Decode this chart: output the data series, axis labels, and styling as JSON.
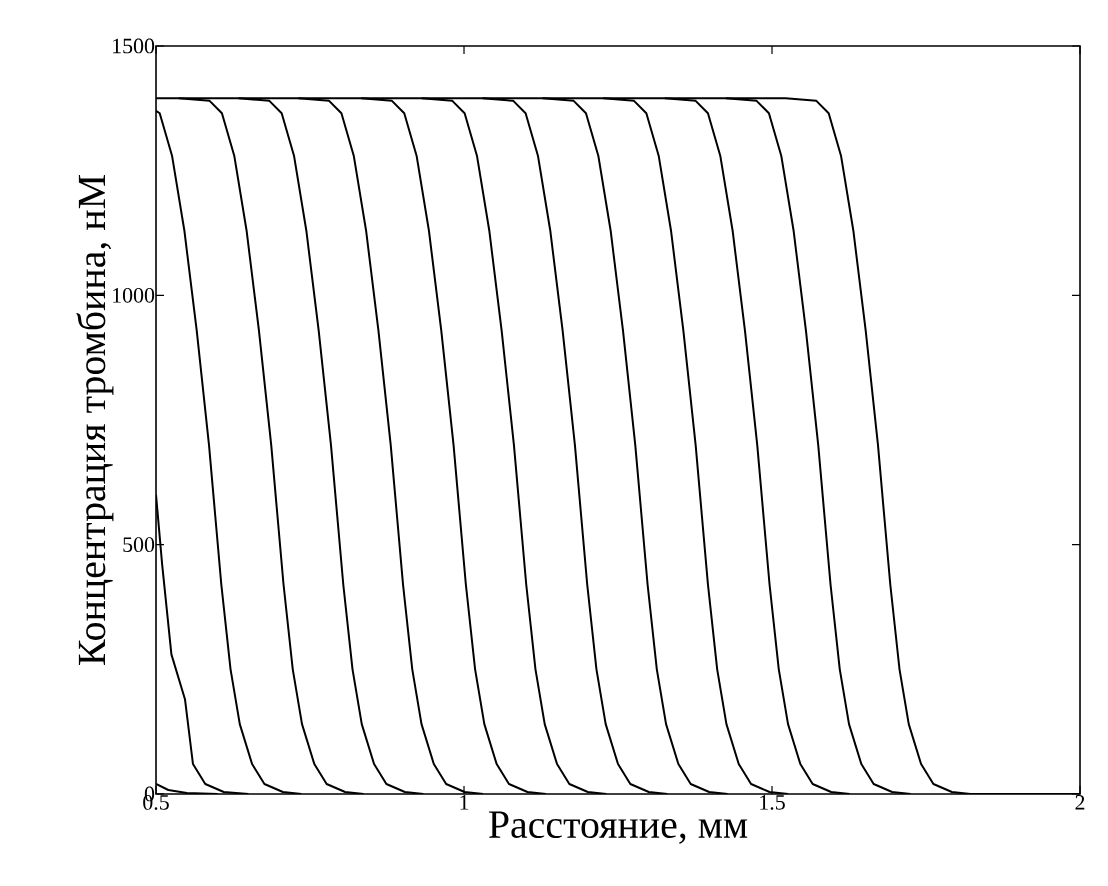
{
  "chart_data": {
    "type": "line",
    "xlabel": "Расстояние, мм",
    "ylabel": "Концентрация тромбина, нМ",
    "xlim": [
      0.5,
      2
    ],
    "ylim": [
      0,
      1500
    ],
    "xticks": [
      0.5,
      1,
      1.5,
      2
    ],
    "yticks": [
      0,
      500,
      1000,
      1500
    ],
    "series": [
      {
        "color": "#000000",
        "x": [
          0.5,
          0.52,
          0.55,
          0.6
        ],
        "values": [
          20,
          8,
          2,
          0
        ]
      },
      {
        "color": "#000000",
        "x": [
          0.5,
          0.51,
          0.525,
          0.547,
          0.56,
          0.58,
          0.61,
          0.65
        ],
        "values": [
          600,
          460,
          280,
          190,
          60,
          20,
          4,
          0
        ]
      },
      {
        "color": "#000000",
        "x": [
          0.5,
          0.506,
          0.526,
          0.546,
          0.566,
          0.586,
          0.596,
          0.606,
          0.621,
          0.636,
          0.656,
          0.676,
          0.706,
          0.736
        ],
        "values": [
          1370,
          1365,
          1280,
          1130,
          930,
          700,
          560,
          420,
          250,
          140,
          60,
          20,
          4,
          0
        ]
      },
      {
        "color": "#000000",
        "x": [
          0.537,
          0.587,
          0.607,
          0.627,
          0.647,
          0.667,
          0.687,
          0.697,
          0.707,
          0.722,
          0.737,
          0.757,
          0.777,
          0.807,
          0.837
        ],
        "values": [
          1395,
          1390,
          1365,
          1280,
          1130,
          930,
          700,
          560,
          420,
          250,
          140,
          60,
          20,
          4,
          0
        ]
      },
      {
        "color": "#000000",
        "x": [
          0.634,
          0.684,
          0.704,
          0.724,
          0.744,
          0.764,
          0.784,
          0.794,
          0.804,
          0.819,
          0.834,
          0.854,
          0.874,
          0.904,
          0.934
        ],
        "values": [
          1395,
          1390,
          1365,
          1280,
          1130,
          930,
          700,
          560,
          420,
          250,
          140,
          60,
          20,
          4,
          0
        ]
      },
      {
        "color": "#000000",
        "x": [
          0.731,
          0.781,
          0.801,
          0.821,
          0.841,
          0.861,
          0.881,
          0.891,
          0.901,
          0.916,
          0.931,
          0.951,
          0.971,
          1.001,
          1.031
        ],
        "values": [
          1395,
          1390,
          1365,
          1280,
          1130,
          930,
          700,
          560,
          420,
          250,
          140,
          60,
          20,
          4,
          0
        ]
      },
      {
        "color": "#000000",
        "x": [
          0.833,
          0.883,
          0.903,
          0.923,
          0.943,
          0.963,
          0.983,
          0.993,
          1.003,
          1.018,
          1.033,
          1.053,
          1.073,
          1.103,
          1.133
        ],
        "values": [
          1395,
          1390,
          1365,
          1280,
          1130,
          930,
          700,
          560,
          420,
          250,
          140,
          60,
          20,
          4,
          0
        ]
      },
      {
        "color": "#000000",
        "x": [
          0.931,
          0.981,
          1.001,
          1.021,
          1.041,
          1.061,
          1.081,
          1.091,
          1.101,
          1.116,
          1.131,
          1.151,
          1.171,
          1.201,
          1.231
        ],
        "values": [
          1395,
          1390,
          1365,
          1280,
          1130,
          930,
          700,
          560,
          420,
          250,
          140,
          60,
          20,
          4,
          0
        ]
      },
      {
        "color": "#000000",
        "x": [
          1.03,
          1.08,
          1.1,
          1.12,
          1.14,
          1.16,
          1.18,
          1.19,
          1.2,
          1.215,
          1.23,
          1.25,
          1.27,
          1.3,
          1.33
        ],
        "values": [
          1395,
          1390,
          1365,
          1280,
          1130,
          930,
          700,
          560,
          420,
          250,
          140,
          60,
          20,
          4,
          0
        ]
      },
      {
        "color": "#000000",
        "x": [
          1.128,
          1.178,
          1.198,
          1.218,
          1.238,
          1.258,
          1.278,
          1.288,
          1.298,
          1.313,
          1.328,
          1.348,
          1.368,
          1.398,
          1.428
        ],
        "values": [
          1395,
          1390,
          1365,
          1280,
          1130,
          930,
          700,
          560,
          420,
          250,
          140,
          60,
          20,
          4,
          0
        ]
      },
      {
        "color": "#000000",
        "x": [
          1.226,
          1.276,
          1.296,
          1.316,
          1.336,
          1.356,
          1.376,
          1.386,
          1.396,
          1.411,
          1.426,
          1.446,
          1.466,
          1.496,
          1.526
        ],
        "values": [
          1395,
          1390,
          1365,
          1280,
          1130,
          930,
          700,
          560,
          420,
          250,
          140,
          60,
          20,
          4,
          0
        ]
      },
      {
        "color": "#000000",
        "x": [
          1.326,
          1.376,
          1.396,
          1.416,
          1.436,
          1.456,
          1.476,
          1.486,
          1.496,
          1.511,
          1.526,
          1.546,
          1.566,
          1.596,
          1.626
        ],
        "values": [
          1395,
          1390,
          1365,
          1280,
          1130,
          930,
          700,
          560,
          420,
          250,
          140,
          60,
          20,
          4,
          0
        ]
      },
      {
        "color": "#000000",
        "x": [
          1.425,
          1.475,
          1.495,
          1.515,
          1.535,
          1.555,
          1.575,
          1.585,
          1.595,
          1.61,
          1.625,
          1.645,
          1.665,
          1.695,
          1.725
        ],
        "values": [
          1395,
          1390,
          1365,
          1280,
          1130,
          930,
          700,
          560,
          420,
          250,
          140,
          60,
          20,
          4,
          0
        ]
      },
      {
        "color": "#000000",
        "x": [
          0.5,
          1.522,
          1.572,
          1.592,
          1.612,
          1.632,
          1.652,
          1.672,
          1.682,
          1.692,
          1.707,
          1.722,
          1.742,
          1.762,
          1.792,
          1.822,
          2
        ],
        "values": [
          1395,
          1395,
          1390,
          1365,
          1280,
          1130,
          930,
          700,
          560,
          420,
          250,
          140,
          60,
          20,
          4,
          0,
          0
        ]
      }
    ]
  }
}
